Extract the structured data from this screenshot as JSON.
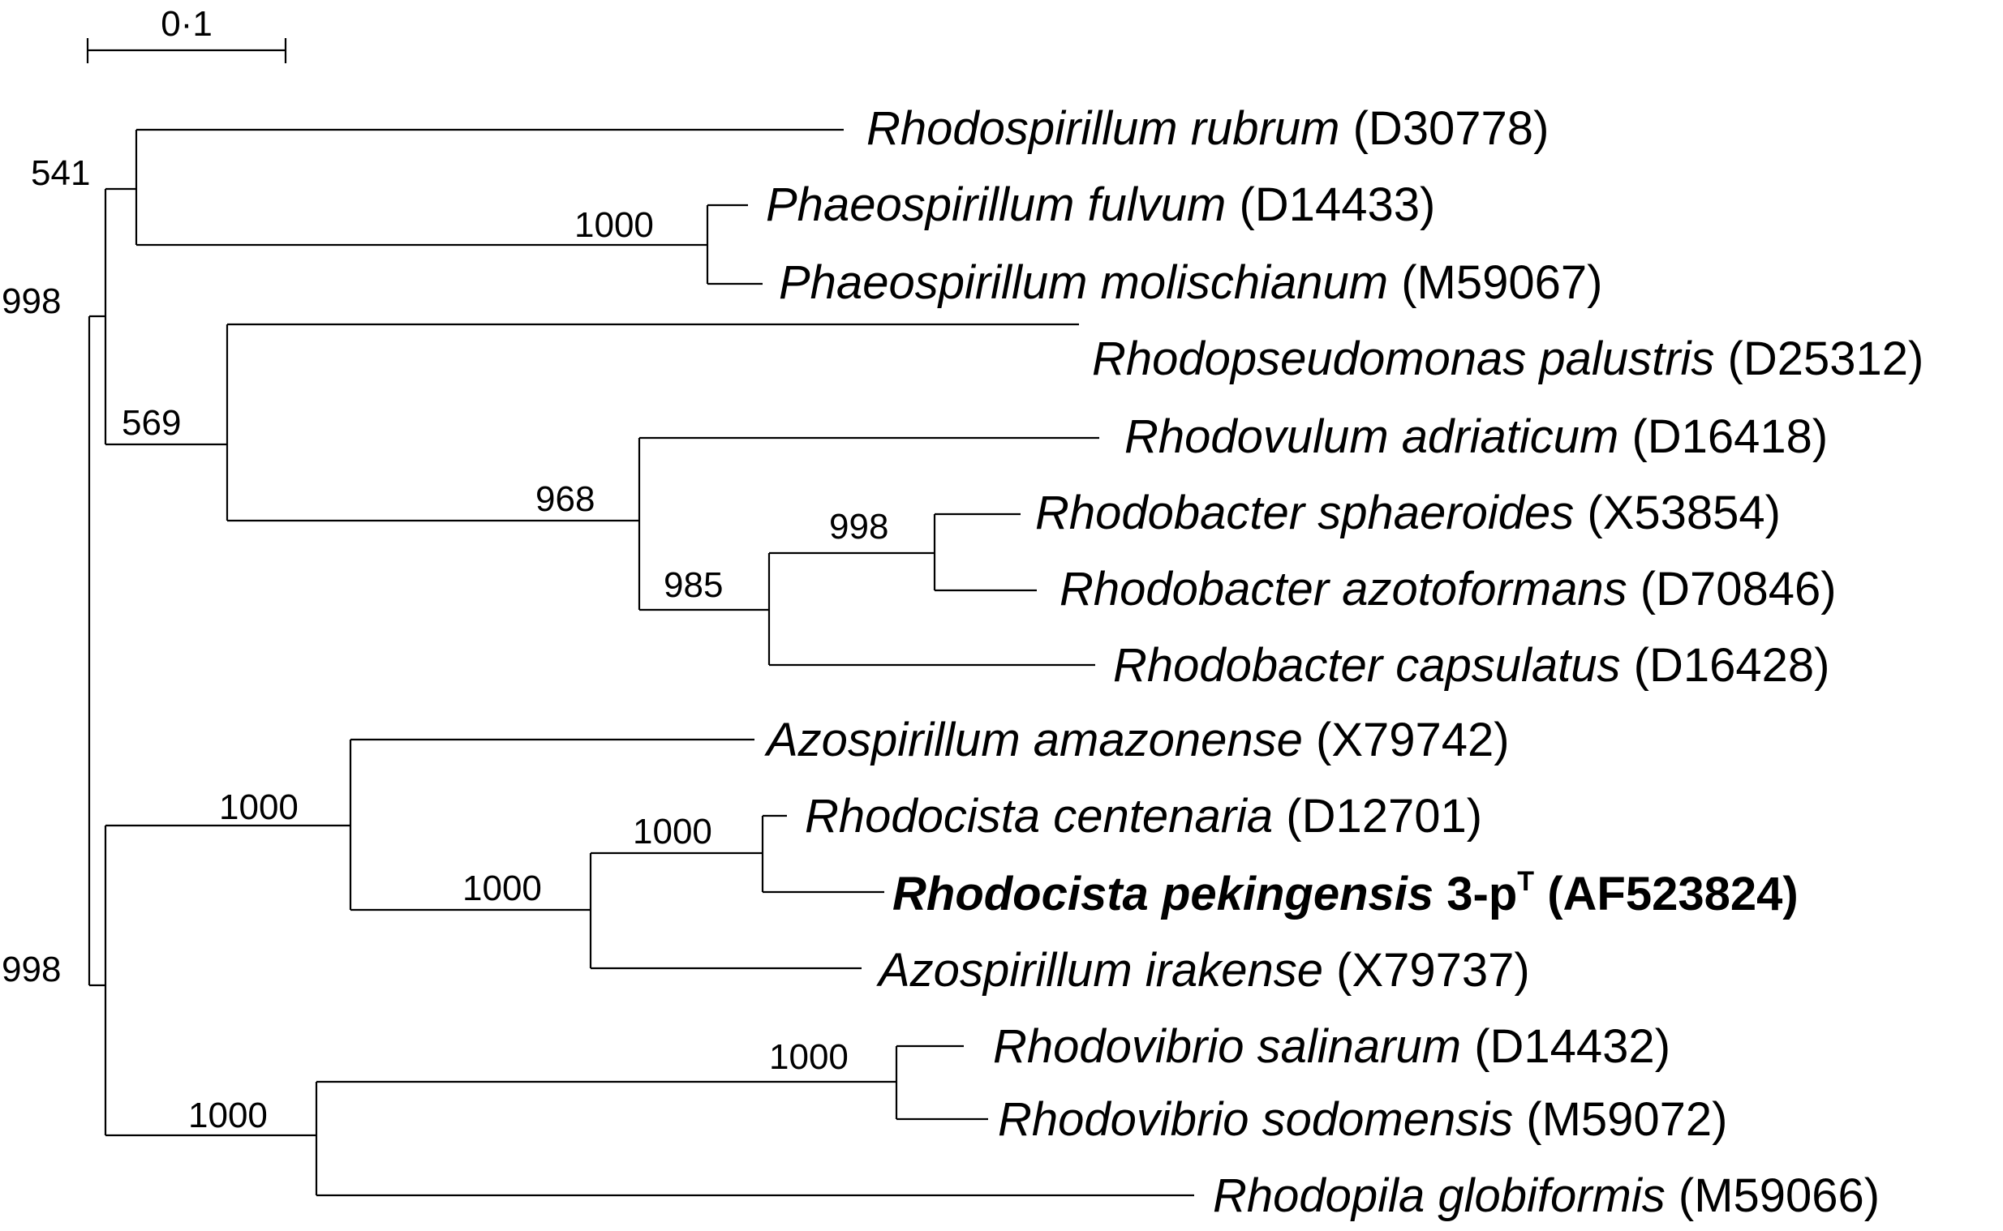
{
  "scale_bar": {
    "label": "0·1",
    "value": 0.1
  },
  "taxa": [
    {
      "id": "rrub",
      "genus": "Rhodospirillum",
      "species": "rubrum",
      "strain": "",
      "accession": "(D30778)",
      "highlight": false
    },
    {
      "id": "pful",
      "genus": "Phaeospirillum",
      "species": "fulvum",
      "strain": "",
      "accession": "(D14433)",
      "highlight": false
    },
    {
      "id": "pmol",
      "genus": "Phaeospirillum",
      "species": "molischianum",
      "strain": "",
      "accession": "(M59067)",
      "highlight": false
    },
    {
      "id": "rpal",
      "genus": "Rhodopseudomonas",
      "species": "palustris",
      "strain": "",
      "accession": "(D25312)",
      "highlight": false
    },
    {
      "id": "radr",
      "genus": "Rhodovulum",
      "species": "adriaticum",
      "strain": "",
      "accession": "(D16418)",
      "highlight": false
    },
    {
      "id": "rsph",
      "genus": "Rhodobacter",
      "species": "sphaeroides",
      "strain": "",
      "accession": "(X53854)",
      "highlight": false
    },
    {
      "id": "razo",
      "genus": "Rhodobacter",
      "species": "azotoformans",
      "strain": "",
      "accession": "(D70846)",
      "highlight": false
    },
    {
      "id": "rcap",
      "genus": "Rhodobacter",
      "species": "capsulatus",
      "strain": "",
      "accession": "(D16428)",
      "highlight": false
    },
    {
      "id": "aama",
      "genus": "Azospirillum",
      "species": "amazonense",
      "strain": "",
      "accession": "(X79742)",
      "highlight": false
    },
    {
      "id": "rcen",
      "genus": "Rhodocista",
      "species": "centenaria",
      "strain": "",
      "accession": "(D12701)",
      "highlight": false
    },
    {
      "id": "rpek",
      "genus": "Rhodocista",
      "species": "pekingensis",
      "strain": "3-p",
      "strain_sup": "T",
      "accession": "(AF523824)",
      "highlight": true
    },
    {
      "id": "airk",
      "genus": "Azospirillum",
      "species": "irakense",
      "strain": "",
      "accession": "(X79737)",
      "highlight": false
    },
    {
      "id": "rsal",
      "genus": "Rhodovibrio",
      "species": "salinarum",
      "strain": "",
      "accession": "(D14432)",
      "highlight": false
    },
    {
      "id": "rsod",
      "genus": "Rhodovibrio",
      "species": "sodomensis",
      "strain": "",
      "accession": "(M59072)",
      "highlight": false
    },
    {
      "id": "rglo",
      "genus": "Rhodopila",
      "species": "globiformis",
      "strain": "",
      "accession": "(M59066)",
      "highlight": false
    }
  ],
  "bootstrap": {
    "n_top": "998",
    "n_rhodospirillum": "541",
    "n_phaeo": "1000",
    "n_rhodobacterales": "569",
    "n_rhodobacteraceae": "968",
    "n_rhodobacter": "985",
    "n_sph_azo": "998",
    "n_bottom": "998",
    "n_azo_rhodocista": "1000",
    "n_rhodocista_irak": "1000",
    "n_rhodocista": "1000",
    "n_rhodovibrio_rhodopila": "1000",
    "n_rhodovibrio": "1000"
  }
}
